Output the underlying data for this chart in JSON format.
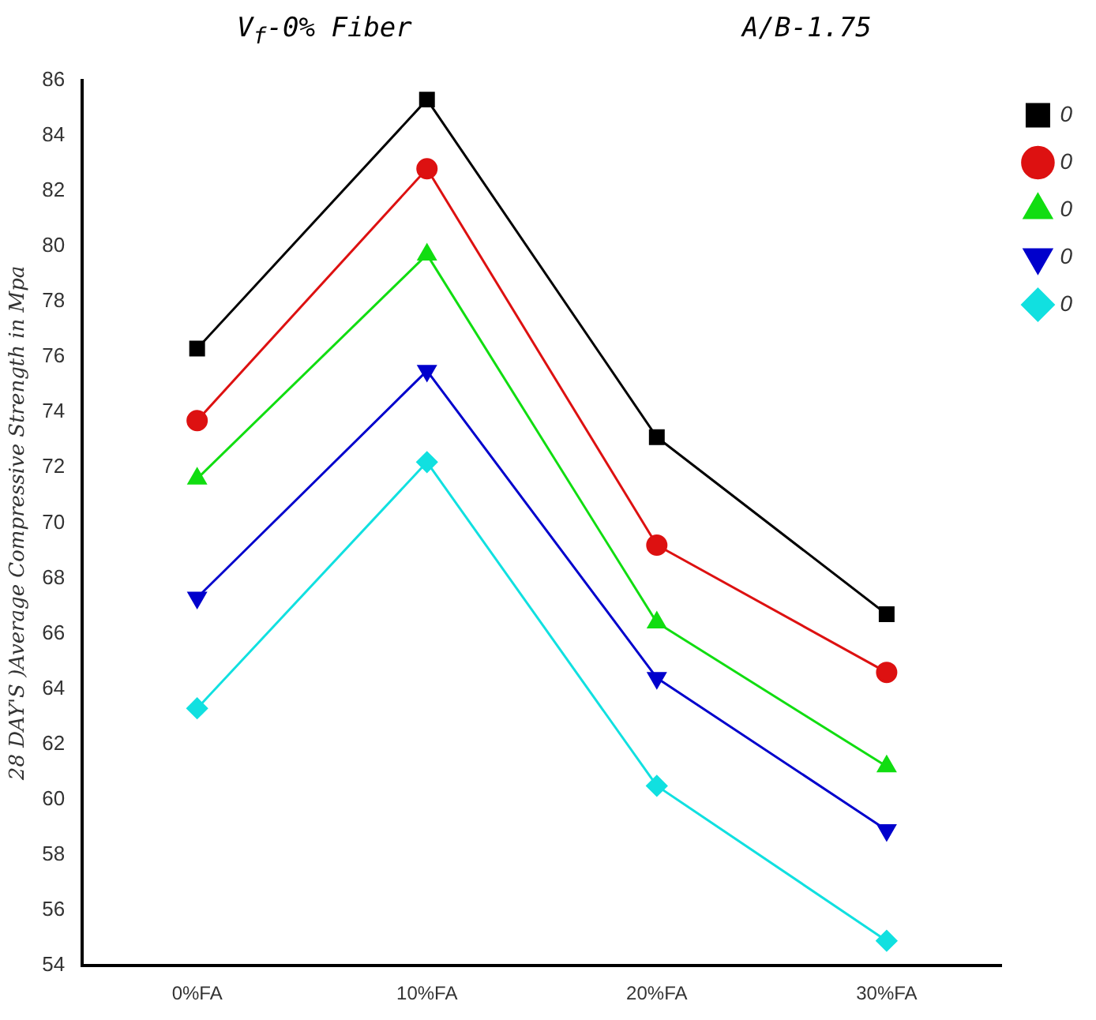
{
  "chart_data": {
    "type": "line",
    "title": "V$_{f}$-0% Fiber",
    "subtitle": "A/B-1.75",
    "ylabel": "28 DAY'S )Average Compressive Strength in Mpa",
    "categories": [
      "0%FA",
      "10%FA",
      "20%FA",
      "30%FA"
    ],
    "ylim": [
      54,
      86
    ],
    "yticks": [
      54,
      56,
      58,
      60,
      62,
      64,
      66,
      68,
      70,
      72,
      74,
      76,
      78,
      80,
      82,
      84,
      86
    ],
    "grid": false,
    "legend": "top right",
    "line_style": "solid",
    "series": [
      {
        "name": "0",
        "color": "#000000",
        "marker": "square",
        "values": [
          76.3,
          85.3,
          73.1,
          66.7
        ]
      },
      {
        "name": "0",
        "color": "#dd1111",
        "marker": "circle",
        "values": [
          73.7,
          82.8,
          69.2,
          64.6
        ]
      },
      {
        "name": "0",
        "color": "#11dd11",
        "marker": "triangle",
        "values": [
          71.6,
          79.7,
          66.4,
          61.2
        ]
      },
      {
        "name": "0",
        "color": "#0000cc",
        "marker": "triangle_down",
        "values": [
          67.3,
          75.5,
          64.4,
          58.9
        ]
      },
      {
        "name": "0",
        "color": "#11e0e0",
        "marker": "diamond",
        "values": [
          63.3,
          72.2,
          60.5,
          54.9
        ]
      }
    ]
  }
}
